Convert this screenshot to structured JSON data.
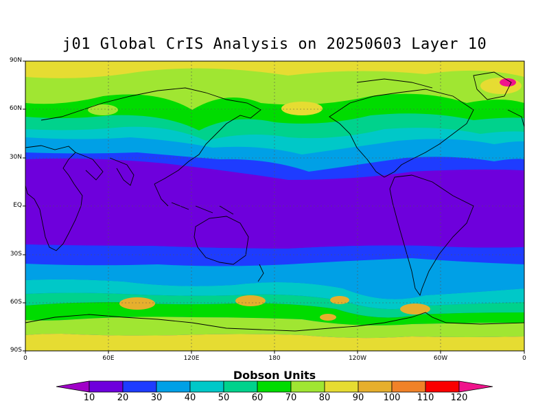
{
  "title": "j01 Global CrIS Analysis on 20250603 Layer 10",
  "y_axis": {
    "ticks": [
      "90N",
      "60N",
      "30N",
      "EQ",
      "30S",
      "60S",
      "90S"
    ]
  },
  "x_axis": {
    "ticks": [
      "0",
      "60E",
      "120E",
      "180",
      "120W",
      "60W",
      "0"
    ]
  },
  "colorbar": {
    "title": "Dobson Units",
    "levels": [
      "10",
      "20",
      "30",
      "40",
      "50",
      "60",
      "70",
      "80",
      "90",
      "100",
      "110",
      "120"
    ],
    "colors": [
      "#a000c8",
      "#6e00dc",
      "#1e3cff",
      "#00a0e6",
      "#00c8c8",
      "#00d28c",
      "#00dc00",
      "#a0e632",
      "#e6dc32",
      "#e6af2d",
      "#f08228",
      "#fa0000",
      "#f0148c"
    ]
  }
}
